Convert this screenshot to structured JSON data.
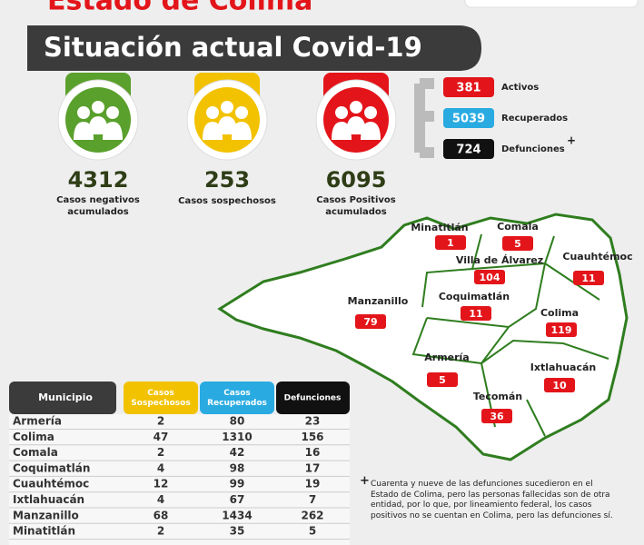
{
  "header": {
    "title": "Estado de Colima",
    "banner": "Situación actual Covid-19"
  },
  "summary": [
    {
      "value": 4312,
      "label": "Casos negativos acumulados",
      "color": "#5aa02c"
    },
    {
      "value": 253,
      "label": "Casos sospechosos",
      "color": "#f2c200"
    },
    {
      "value": 6095,
      "label": "Casos Positivos acumulados",
      "color": "#e3151a"
    }
  ],
  "breakdown": [
    {
      "value": 381,
      "label": "Activos",
      "color": "#e3151a"
    },
    {
      "value": 5039,
      "label": "Recuperados",
      "color": "#29abe2"
    },
    {
      "value": 724,
      "label": "Defunciones",
      "color": "#111111",
      "mark": "+"
    }
  ],
  "map": [
    {
      "name": "Minatitlán",
      "value": 1
    },
    {
      "name": "Comala",
      "value": 5
    },
    {
      "name": "Villa de Álvarez",
      "value": 104
    },
    {
      "name": "Cuauhtémoc",
      "value": 11
    },
    {
      "name": "Manzanillo",
      "value": 79
    },
    {
      "name": "Coquimatlán",
      "value": 11
    },
    {
      "name": "Colima",
      "value": 119
    },
    {
      "name": "Armería",
      "value": 5
    },
    {
      "name": "Ixtlahuacán",
      "value": 10
    },
    {
      "name": "Tecomán",
      "value": 36
    }
  ],
  "table": {
    "headers": [
      "Municipio",
      "Casos Sospechosos",
      "Casos Recuperados",
      "Defunciones"
    ],
    "rows": [
      [
        "Armería",
        2,
        80,
        23
      ],
      [
        "Colima",
        47,
        1310,
        156
      ],
      [
        "Comala",
        2,
        42,
        16
      ],
      [
        "Coquimatlán",
        4,
        98,
        17
      ],
      [
        "Cuauhtémoc",
        12,
        99,
        19
      ],
      [
        "Ixtlahuacán",
        4,
        67,
        7
      ],
      [
        "Manzanillo",
        68,
        1434,
        262
      ],
      [
        "Minatitlán",
        2,
        35,
        5
      ]
    ]
  },
  "footnote": {
    "mark": "+",
    "text": "Cuarenta y nueve de las defunciones sucedieron en el Estado de Colima, pero las personas fallecidas son de otra entidad, por lo que, por lineamiento federal, los casos positivos no se cuentan en Colima, pero las defunciones sí."
  }
}
